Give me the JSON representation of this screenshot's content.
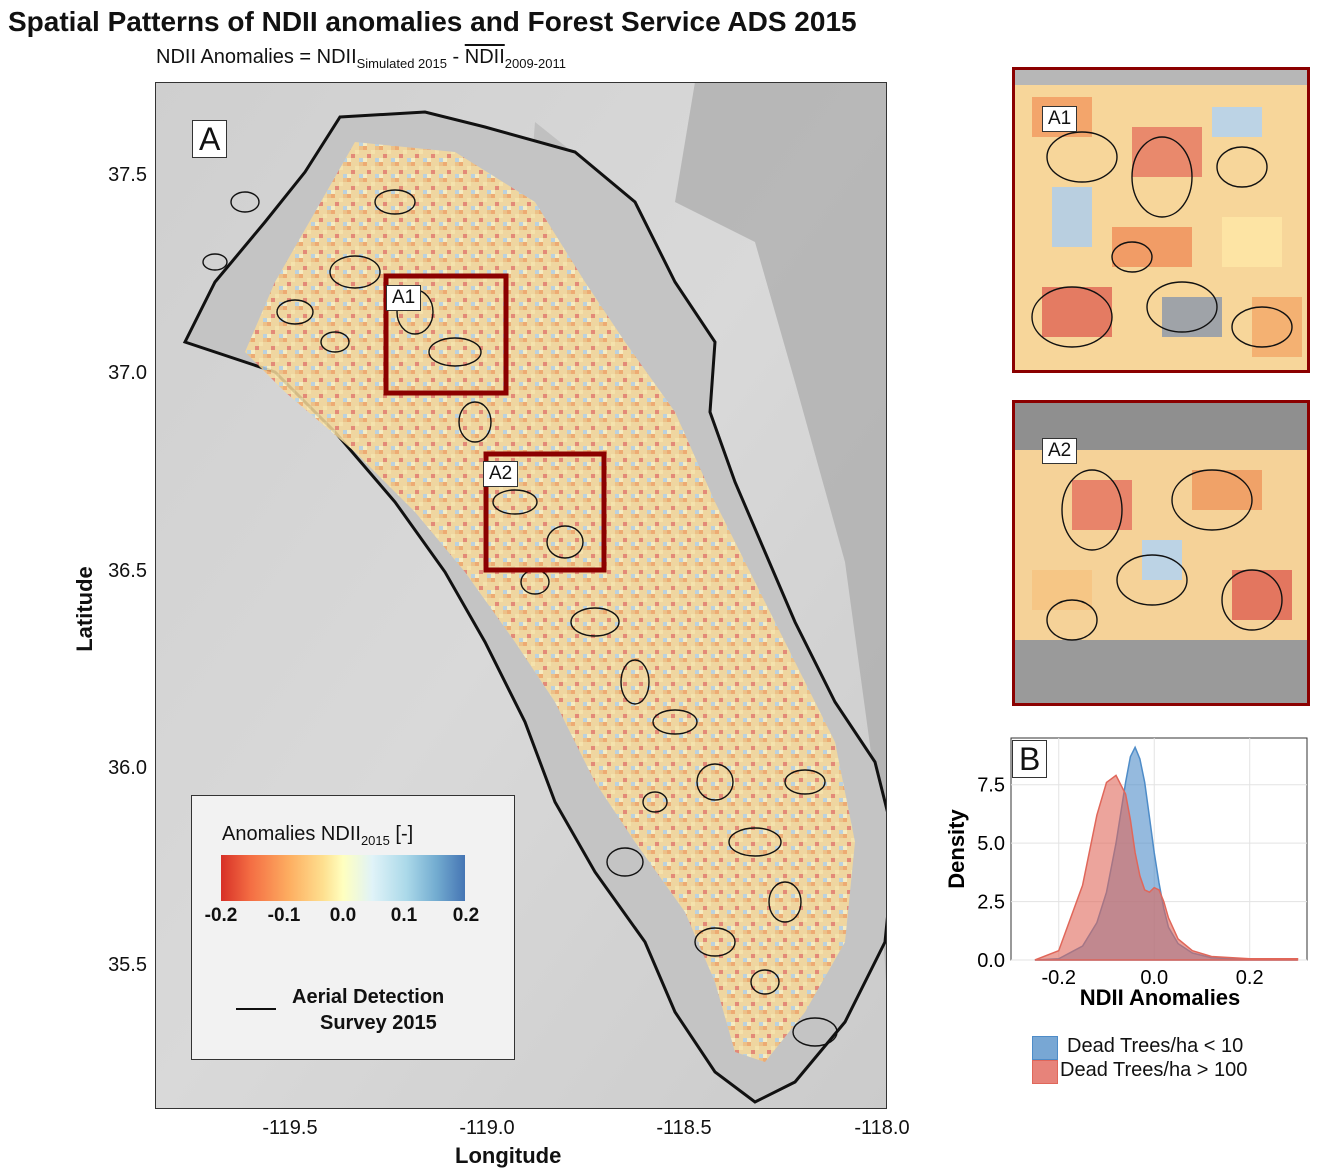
{
  "title": "Spatial Patterns of NDII anomalies and Forest Service ADS 2015",
  "subtitle": {
    "prefix": "NDII Anomalies = NDII",
    "sub1": "Simulated 2015",
    "minus": " - ",
    "bar_term": "NDII",
    "sub2": "2009-2011"
  },
  "map": {
    "panel_label": "A",
    "inset_labels": [
      "A1",
      "A2"
    ],
    "y_axis_title": "Latitude",
    "x_axis_title": "Longitude",
    "y_ticks": [
      "37.5",
      "37.0",
      "36.5",
      "36.0",
      "35.5"
    ],
    "x_ticks": [
      "-119.5",
      "-119.0",
      "-118.5",
      "-118.0"
    ],
    "legend": {
      "title_prefix": "Anomalies NDII",
      "title_sub": "2015",
      "title_suffix": " [-]",
      "ticks": [
        "-0.2",
        "-0.1",
        "0.0",
        "0.1",
        "0.2"
      ],
      "colors": [
        "#d73027",
        "#fdae61",
        "#ffffbf",
        "#abd9e9",
        "#4575b4"
      ],
      "ads_line1": "Aerial Detection",
      "ads_line2": "Survey 2015"
    },
    "box_color": "#8b0000"
  },
  "insets": [
    {
      "label": "A1"
    },
    {
      "label": "A2"
    }
  ],
  "chart_data": {
    "type": "area",
    "panel_label": "B",
    "xlabel": "NDII Anomalies",
    "ylabel": "Density",
    "xlim": [
      -0.3,
      0.32
    ],
    "ylim": [
      0,
      9.5
    ],
    "x_ticks": [
      "-0.2",
      "0.0",
      "0.2"
    ],
    "y_ticks": [
      "0.0",
      "2.5",
      "5.0",
      "7.5"
    ],
    "grid": true,
    "legend_position": "bottom",
    "x": [
      -0.25,
      -0.2,
      -0.15,
      -0.12,
      -0.1,
      -0.08,
      -0.06,
      -0.05,
      -0.04,
      -0.03,
      -0.02,
      -0.01,
      0.0,
      0.01,
      0.02,
      0.03,
      0.05,
      0.08,
      0.12,
      0.2,
      0.3
    ],
    "series": [
      {
        "name": "Dead Trees/ha < 10",
        "color": "#4e8cc8",
        "values": [
          0.0,
          0.05,
          0.6,
          1.6,
          2.9,
          5.0,
          7.6,
          8.7,
          9.1,
          8.6,
          7.6,
          6.1,
          4.6,
          3.3,
          2.2,
          1.4,
          0.7,
          0.3,
          0.1,
          0.02,
          0.0
        ]
      },
      {
        "name": "Dead Trees/ha > 100",
        "color": "#e0675a",
        "values": [
          0.0,
          0.4,
          3.2,
          6.2,
          7.6,
          7.9,
          7.1,
          6.0,
          4.6,
          3.6,
          3.0,
          2.9,
          3.1,
          3.0,
          2.5,
          1.8,
          0.9,
          0.4,
          0.15,
          0.05,
          0.05
        ]
      }
    ]
  }
}
